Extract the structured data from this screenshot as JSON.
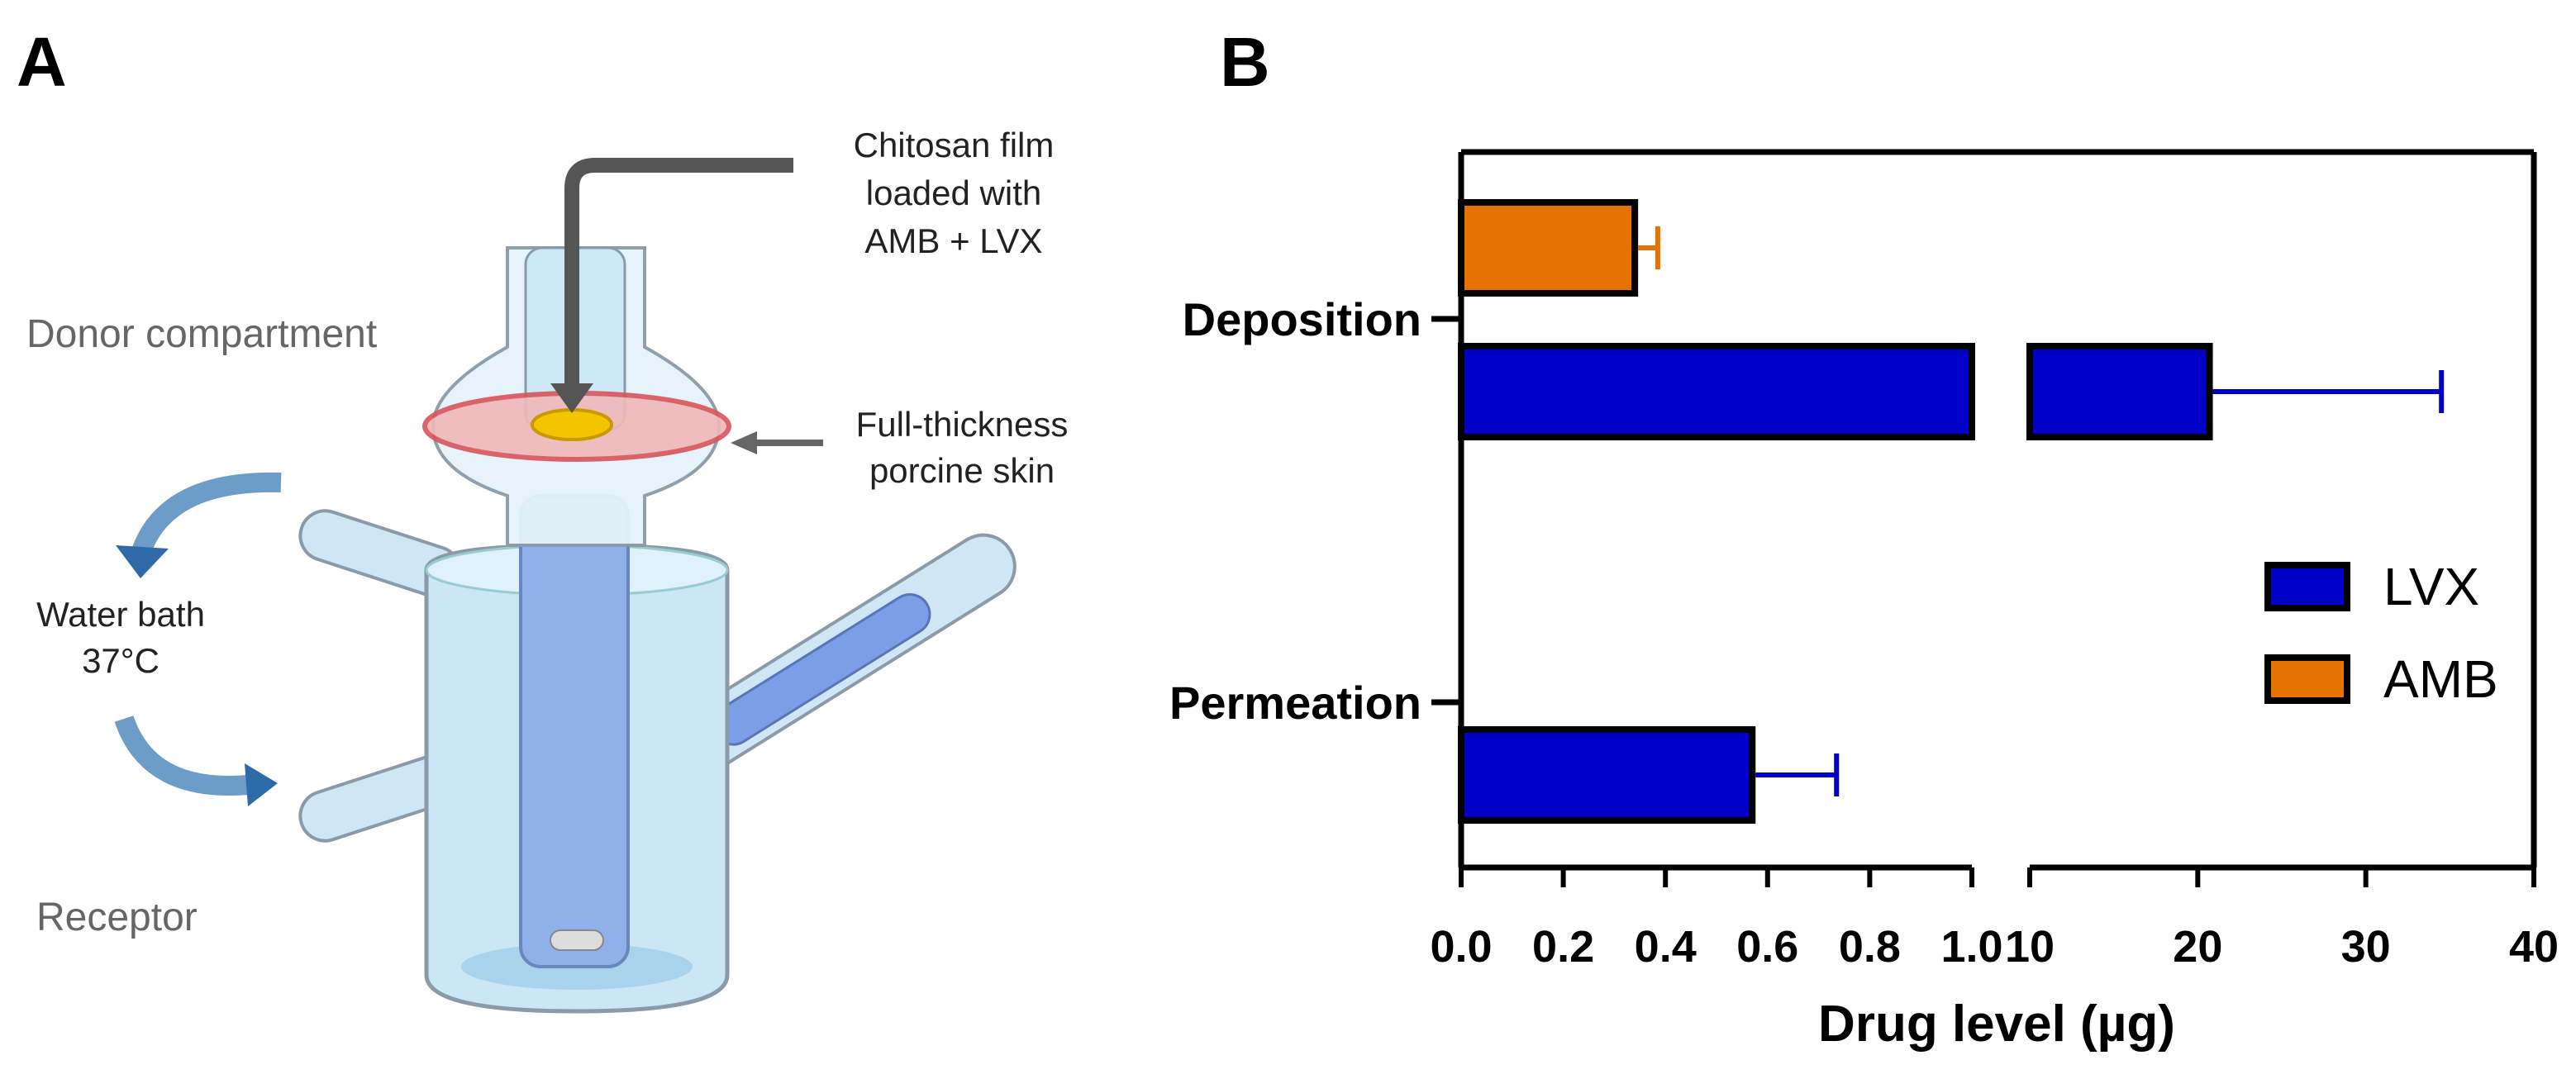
{
  "panel_labels": [
    "A",
    "B"
  ],
  "diagram": {
    "film_label": [
      "Chitosan film",
      "loaded with",
      "AMB + LVX"
    ],
    "donor_label": "Donor compartment",
    "skin_label": [
      "Full-thickness",
      "porcine skin"
    ],
    "bath_label": [
      "Water bath",
      "37°C"
    ],
    "receptor_label": "Receptor"
  },
  "chart_data": {
    "type": "bar",
    "orientation": "horizontal",
    "categories": [
      "Deposition",
      "Permeation"
    ],
    "series": [
      {
        "name": "LVX",
        "color": "#0000c8",
        "values": [
          20.7,
          0.57
        ],
        "errors": [
          13.8,
          0.165
        ]
      },
      {
        "name": "AMB",
        "color": "#e67300",
        "values": [
          0.34,
          null
        ],
        "errors": [
          0.045,
          null
        ]
      }
    ],
    "x_label": "Drug level (µg)",
    "x_segments": [
      {
        "xlim": [
          0,
          1.0
        ],
        "xticks": [
          {
            "value": 0,
            "label": "0.0"
          },
          0.2,
          0.4,
          0.6,
          0.8,
          {
            "value": 1.0,
            "label": "1.0"
          }
        ]
      },
      {
        "xlim": [
          10,
          40
        ],
        "xticks": [
          10,
          20,
          30,
          40
        ]
      }
    ],
    "legend": "right"
  }
}
